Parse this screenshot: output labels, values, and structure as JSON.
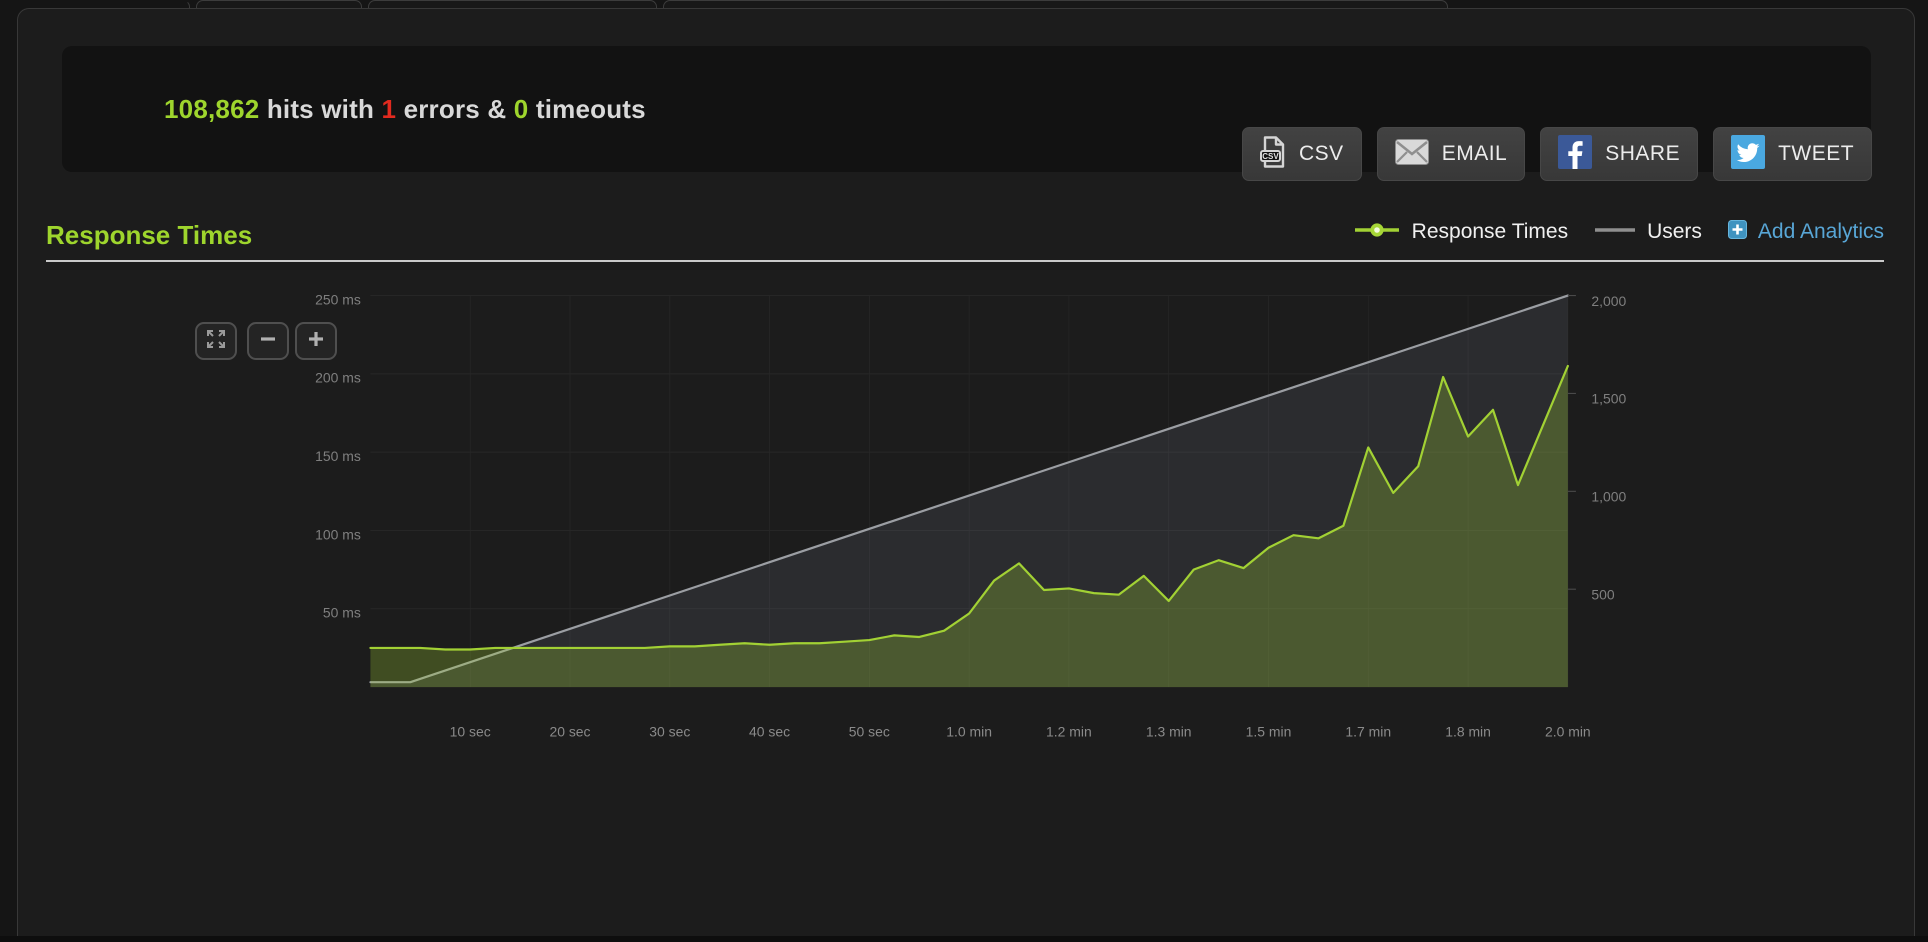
{
  "stats_bar": {
    "hits": "108,862",
    "hits_suffix": " hits with ",
    "errors": "1",
    "errors_suffix": " errors & ",
    "timeouts": "0",
    "timeouts_suffix": " timeouts",
    "buttons": [
      {
        "label": "CSV",
        "icon": "csv-file-icon"
      },
      {
        "label": "EMAIL",
        "icon": "envelope-icon"
      },
      {
        "label": "SHARE",
        "icon": "facebook-icon"
      },
      {
        "label": "TWEET",
        "icon": "twitter-icon"
      }
    ]
  },
  "section": {
    "title": "Response Times"
  },
  "legend": {
    "items": [
      {
        "label": "Response Times",
        "marker": "green-line-dot"
      },
      {
        "label": "Users",
        "marker": "gray-line"
      },
      {
        "label": "Add Analytics",
        "marker": "plus-square",
        "link": true
      }
    ]
  },
  "chart_controls": {
    "reset_zoom": "expand",
    "zoom_out": "−",
    "zoom_in": "+"
  },
  "colors": {
    "accent_green": "#9ed52d",
    "error_red": "#e12a1f",
    "link_blue": "#58a6d6",
    "series_green": "#a2d134",
    "series_gray": "#9b9ea3",
    "facebook_blue": "#3b5998",
    "twitter_blue": "#4aa8e0"
  },
  "chart_data": {
    "type": "line",
    "title": "Response Times",
    "x_unit": "time",
    "grid": true,
    "legend_position": "top-right",
    "x_ticks": [
      {
        "label": "10 sec",
        "seconds": 10
      },
      {
        "label": "20 sec",
        "seconds": 20
      },
      {
        "label": "30 sec",
        "seconds": 30
      },
      {
        "label": "40 sec",
        "seconds": 40
      },
      {
        "label": "50 sec",
        "seconds": 50
      },
      {
        "label": "1.0 min",
        "seconds": 60
      },
      {
        "label": "1.2 min",
        "seconds": 70
      },
      {
        "label": "1.3 min",
        "seconds": 80
      },
      {
        "label": "1.5 min",
        "seconds": 90
      },
      {
        "label": "1.7 min",
        "seconds": 100
      },
      {
        "label": "1.8 min",
        "seconds": 110
      },
      {
        "label": "2.0 min",
        "seconds": 120
      }
    ],
    "x_range_seconds": [
      0,
      120
    ],
    "y_left": {
      "name": "Response Times (ms)",
      "range": [
        0,
        250
      ],
      "ticks": [
        {
          "label": "250 ms",
          "value": 250
        },
        {
          "label": "200 ms",
          "value": 200
        },
        {
          "label": "150 ms",
          "value": 150
        },
        {
          "label": "100 ms",
          "value": 100
        },
        {
          "label": "50 ms",
          "value": 50
        }
      ]
    },
    "y_right": {
      "name": "Users",
      "range": [
        0,
        2000
      ],
      "ticks": [
        {
          "label": "2,000",
          "value": 2000
        },
        {
          "label": "1,500",
          "value": 1500
        },
        {
          "label": "1,000",
          "value": 1000
        },
        {
          "label": "500",
          "value": 500
        }
      ]
    },
    "series": [
      {
        "name": "Users",
        "axis": "right",
        "color": "#9b9ea3",
        "fill_color": "rgba(175,190,215,0.10)",
        "points": [
          [
            0,
            25
          ],
          [
            4,
            25
          ],
          [
            120,
            2000
          ]
        ]
      },
      {
        "name": "Response Times",
        "axis": "left",
        "color": "#a2d134",
        "fill_color": "rgba(162,209,52,0.27)",
        "points": [
          [
            0,
            25
          ],
          [
            2.5,
            25
          ],
          [
            5,
            25
          ],
          [
            7.5,
            24
          ],
          [
            10,
            24
          ],
          [
            12.5,
            25
          ],
          [
            15,
            25
          ],
          [
            17.5,
            25
          ],
          [
            20,
            25
          ],
          [
            22.5,
            25
          ],
          [
            25,
            25
          ],
          [
            27.5,
            25
          ],
          [
            30,
            26
          ],
          [
            32.5,
            26
          ],
          [
            35,
            27
          ],
          [
            37.5,
            28
          ],
          [
            40,
            27
          ],
          [
            42.5,
            28
          ],
          [
            45,
            28
          ],
          [
            47.5,
            29
          ],
          [
            50,
            30
          ],
          [
            52.5,
            33
          ],
          [
            55,
            32
          ],
          [
            57.5,
            36
          ],
          [
            60,
            47
          ],
          [
            62.5,
            68
          ],
          [
            65,
            79
          ],
          [
            67.5,
            62
          ],
          [
            70,
            63
          ],
          [
            72.5,
            60
          ],
          [
            75,
            59
          ],
          [
            77.5,
            71
          ],
          [
            80,
            55
          ],
          [
            82.5,
            75
          ],
          [
            85,
            81
          ],
          [
            87.5,
            76
          ],
          [
            90,
            89
          ],
          [
            92.5,
            97
          ],
          [
            95,
            95
          ],
          [
            97.5,
            103
          ],
          [
            100,
            153
          ],
          [
            102.5,
            124
          ],
          [
            105,
            141
          ],
          [
            107.5,
            198
          ],
          [
            110,
            160
          ],
          [
            112.5,
            177
          ],
          [
            115,
            129
          ],
          [
            117.5,
            167
          ],
          [
            120,
            205
          ]
        ]
      }
    ]
  }
}
